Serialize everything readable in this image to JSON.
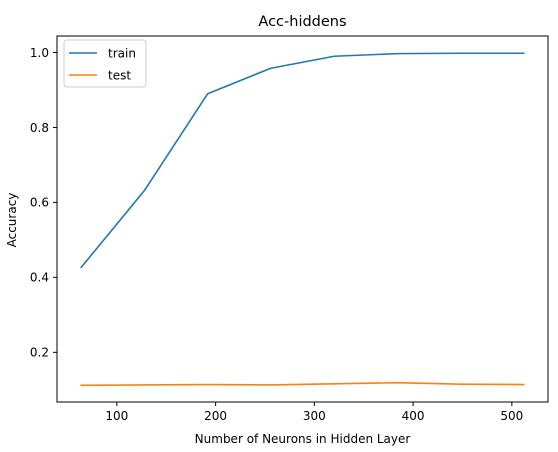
{
  "chart_data": {
    "type": "line",
    "title": "Acc-hiddens",
    "xlabel": "Number of Neurons in Hidden Layer",
    "ylabel": "Accuracy",
    "xlim": [
      39.4,
      536.6
    ],
    "ylim": [
      0.0675,
      1.044
    ],
    "xticks": [
      100,
      200,
      300,
      400,
      500
    ],
    "yticks": [
      0.2,
      0.4,
      0.6,
      0.8,
      1.0
    ],
    "ytick_labels": [
      "0.2",
      "0.4",
      "0.6",
      "0.8",
      "1.0"
    ],
    "x": [
      64,
      128,
      192,
      256,
      320,
      384,
      448,
      512
    ],
    "series": [
      {
        "name": "train",
        "color": "#1f77b4",
        "values": [
          0.427,
          0.632,
          0.89,
          0.958,
          0.99,
          0.997,
          0.998,
          0.998
        ]
      },
      {
        "name": "test",
        "color": "#ff7f0e",
        "values": [
          0.112,
          0.113,
          0.114,
          0.113,
          0.116,
          0.119,
          0.115,
          0.114
        ]
      }
    ],
    "grid": false,
    "legend_position": "top-left"
  }
}
